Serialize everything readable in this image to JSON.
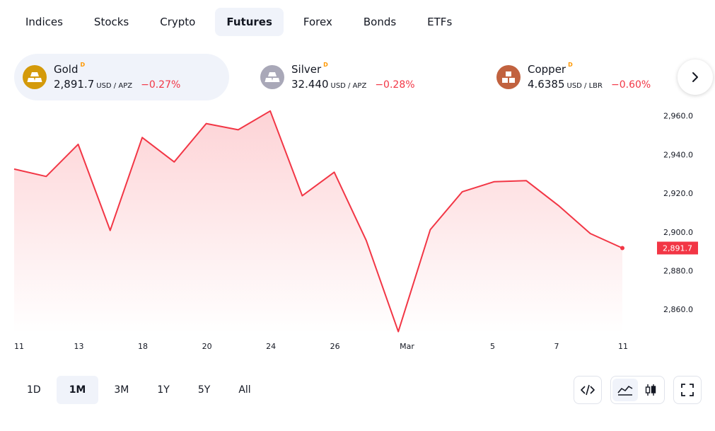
{
  "tabs": [
    {
      "label": "Indices"
    },
    {
      "label": "Stocks"
    },
    {
      "label": "Crypto"
    },
    {
      "label": "Futures",
      "active": true
    },
    {
      "label": "Forex"
    },
    {
      "label": "Bonds"
    },
    {
      "label": "ETFs"
    }
  ],
  "instruments": [
    {
      "name": "Gold",
      "badge": "D",
      "price": "2,891.7",
      "unit": "USD / APZ",
      "change": "−0.27%",
      "icon": "gold-bars-icon",
      "icon_color": "#d49a0a"
    },
    {
      "name": "Silver",
      "badge": "D",
      "price": "32.440",
      "unit": "USD / APZ",
      "change": "−0.28%",
      "icon": "silver-bars-icon",
      "icon_color": "#a9a8b8"
    },
    {
      "name": "Copper",
      "badge": "D",
      "price": "4.6385",
      "unit": "USD / LBR",
      "change": "−0.60%",
      "icon": "copper-blocks-icon",
      "icon_color": "#c1623f"
    }
  ],
  "ranges": [
    {
      "label": "1D"
    },
    {
      "label": "1M",
      "active": true
    },
    {
      "label": "3M"
    },
    {
      "label": "1Y"
    },
    {
      "label": "5Y"
    },
    {
      "label": "All"
    }
  ],
  "colors": {
    "line": "#f23645",
    "fill_top": "#fdd3d6",
    "price_tag": "#f23645",
    "active_bg": "#f0f3fa"
  },
  "chart_data": {
    "type": "area",
    "x": [
      "Feb 11",
      "Feb 12",
      "Feb 13",
      "Feb 14",
      "Feb 18",
      "Feb 19",
      "Feb 20",
      "Feb 21",
      "Feb 24",
      "Feb 25",
      "Feb 26",
      "Feb 27",
      "Feb 28",
      "Mar 3",
      "Mar 4",
      "Mar 5",
      "Mar 6",
      "Mar 7",
      "Mar 10",
      "Mar 11"
    ],
    "series": [
      {
        "values": [
          2932.5,
          2928.7,
          2945.3,
          2900.8,
          2948.8,
          2936.2,
          2956.0,
          2952.8,
          2962.5,
          2918.7,
          2930.9,
          2895.6,
          2848.5,
          2901.2,
          2920.8,
          2926.0,
          2926.5,
          2913.7,
          2899.2,
          2891.7
        ]
      }
    ],
    "x_tick_labels": [
      "11",
      "13",
      "18",
      "20",
      "24",
      "26",
      "Mar",
      "5",
      "7",
      "11"
    ],
    "y_tick_labels": [
      "2,960.0",
      "2,940.0",
      "2,920.0",
      "2,900.0",
      "2,880.0",
      "2,860.0"
    ],
    "y_ticks": [
      2960,
      2940,
      2920,
      2900,
      2880,
      2860
    ],
    "ylim": [
      2848,
      2965
    ],
    "last_price_label": "2,891.7",
    "grid": false,
    "legend": "none"
  }
}
